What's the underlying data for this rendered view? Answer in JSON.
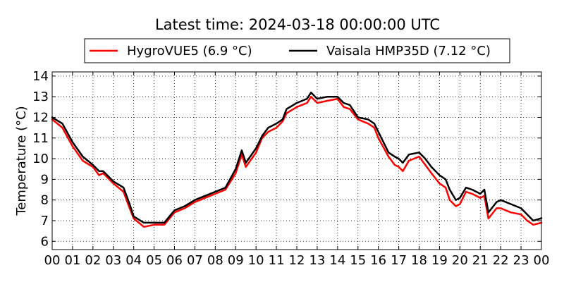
{
  "chart_data": {
    "type": "line",
    "title": "Latest time: 2024-03-18 00:00:00 UTC",
    "xlabel": "",
    "ylabel": "Temperature (°C)",
    "xlim": [
      0,
      24
    ],
    "ylim": [
      5.6,
      14.2
    ],
    "x_ticks": [
      "00",
      "01",
      "02",
      "03",
      "04",
      "05",
      "06",
      "07",
      "08",
      "09",
      "10",
      "11",
      "12",
      "13",
      "14",
      "15",
      "16",
      "17",
      "18",
      "19",
      "20",
      "21",
      "22",
      "23",
      "00"
    ],
    "y_ticks": [
      "6",
      "7",
      "8",
      "9",
      "10",
      "11",
      "12",
      "13",
      "14"
    ],
    "grid": true,
    "legend_position": "top-center",
    "series": [
      {
        "name": "HygroVUE5 (6.9 °C)",
        "color": "#ff0000",
        "points": [
          [
            0,
            11.9
          ],
          [
            0.5,
            11.5
          ],
          [
            1,
            10.6
          ],
          [
            1.5,
            9.9
          ],
          [
            2,
            9.6
          ],
          [
            2.3,
            9.2
          ],
          [
            2.5,
            9.3
          ],
          [
            3,
            8.8
          ],
          [
            3.5,
            8.4
          ],
          [
            3.8,
            7.6
          ],
          [
            4,
            7.1
          ],
          [
            4.5,
            6.7
          ],
          [
            5,
            6.8
          ],
          [
            5.5,
            6.8
          ],
          [
            6,
            7.4
          ],
          [
            6.5,
            7.6
          ],
          [
            7,
            7.9
          ],
          [
            7.5,
            8.1
          ],
          [
            8,
            8.3
          ],
          [
            8.5,
            8.5
          ],
          [
            9,
            9.3
          ],
          [
            9.3,
            10.2
          ],
          [
            9.5,
            9.6
          ],
          [
            10,
            10.3
          ],
          [
            10.3,
            11.0
          ],
          [
            10.6,
            11.3
          ],
          [
            11,
            11.5
          ],
          [
            11.3,
            11.8
          ],
          [
            11.5,
            12.2
          ],
          [
            12,
            12.5
          ],
          [
            12.5,
            12.7
          ],
          [
            12.7,
            13.0
          ],
          [
            13,
            12.7
          ],
          [
            13.5,
            12.8
          ],
          [
            14,
            12.9
          ],
          [
            14.3,
            12.5
          ],
          [
            14.6,
            12.4
          ],
          [
            15,
            11.9
          ],
          [
            15.5,
            11.7
          ],
          [
            15.8,
            11.5
          ],
          [
            16,
            11.0
          ],
          [
            16.5,
            10.1
          ],
          [
            16.8,
            9.7
          ],
          [
            17,
            9.6
          ],
          [
            17.2,
            9.4
          ],
          [
            17.5,
            9.9
          ],
          [
            18,
            10.1
          ],
          [
            18.3,
            9.7
          ],
          [
            18.6,
            9.3
          ],
          [
            19,
            8.8
          ],
          [
            19.3,
            8.6
          ],
          [
            19.5,
            8.0
          ],
          [
            19.8,
            7.7
          ],
          [
            20,
            7.8
          ],
          [
            20.3,
            8.4
          ],
          [
            20.6,
            8.3
          ],
          [
            21,
            8.1
          ],
          [
            21.2,
            8.2
          ],
          [
            21.4,
            7.1
          ],
          [
            21.8,
            7.6
          ],
          [
            22,
            7.6
          ],
          [
            22.5,
            7.4
          ],
          [
            23,
            7.3
          ],
          [
            23.3,
            7.0
          ],
          [
            23.6,
            6.8
          ],
          [
            24,
            6.9
          ]
        ]
      },
      {
        "name": "Vaisala HMP35D (7.12 °C)",
        "color": "#000000",
        "points": [
          [
            0,
            12.0
          ],
          [
            0.5,
            11.7
          ],
          [
            1,
            10.8
          ],
          [
            1.5,
            10.1
          ],
          [
            2,
            9.7
          ],
          [
            2.3,
            9.4
          ],
          [
            2.5,
            9.4
          ],
          [
            3,
            8.9
          ],
          [
            3.5,
            8.6
          ],
          [
            3.8,
            7.8
          ],
          [
            4,
            7.2
          ],
          [
            4.5,
            6.9
          ],
          [
            5,
            6.9
          ],
          [
            5.5,
            6.9
          ],
          [
            6,
            7.5
          ],
          [
            6.5,
            7.7
          ],
          [
            7,
            8.0
          ],
          [
            7.5,
            8.2
          ],
          [
            8,
            8.4
          ],
          [
            8.5,
            8.6
          ],
          [
            9,
            9.5
          ],
          [
            9.3,
            10.4
          ],
          [
            9.5,
            9.8
          ],
          [
            10,
            10.5
          ],
          [
            10.3,
            11.1
          ],
          [
            10.6,
            11.5
          ],
          [
            11,
            11.7
          ],
          [
            11.3,
            11.9
          ],
          [
            11.5,
            12.4
          ],
          [
            12,
            12.7
          ],
          [
            12.5,
            12.9
          ],
          [
            12.7,
            13.2
          ],
          [
            13,
            12.9
          ],
          [
            13.5,
            13.0
          ],
          [
            14,
            13.0
          ],
          [
            14.3,
            12.7
          ],
          [
            14.6,
            12.6
          ],
          [
            15,
            12.0
          ],
          [
            15.5,
            11.9
          ],
          [
            15.8,
            11.7
          ],
          [
            16,
            11.3
          ],
          [
            16.5,
            10.3
          ],
          [
            16.8,
            10.1
          ],
          [
            17,
            10.0
          ],
          [
            17.2,
            9.8
          ],
          [
            17.5,
            10.2
          ],
          [
            18,
            10.3
          ],
          [
            18.3,
            10.0
          ],
          [
            18.6,
            9.6
          ],
          [
            19,
            9.2
          ],
          [
            19.3,
            9.0
          ],
          [
            19.5,
            8.5
          ],
          [
            19.8,
            8.0
          ],
          [
            20,
            8.1
          ],
          [
            20.3,
            8.6
          ],
          [
            20.6,
            8.5
          ],
          [
            21,
            8.3
          ],
          [
            21.2,
            8.5
          ],
          [
            21.4,
            7.4
          ],
          [
            21.8,
            7.9
          ],
          [
            22,
            8.0
          ],
          [
            22.5,
            7.8
          ],
          [
            23,
            7.6
          ],
          [
            23.3,
            7.3
          ],
          [
            23.6,
            7.0
          ],
          [
            24,
            7.12
          ]
        ]
      }
    ]
  }
}
